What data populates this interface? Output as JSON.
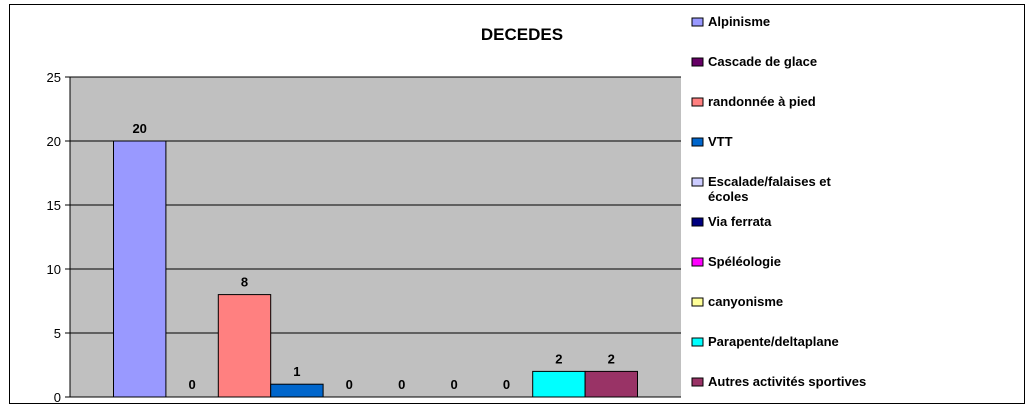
{
  "chart_data": {
    "type": "bar",
    "title": "DECEDES",
    "xlabel": "",
    "ylabel": "",
    "ylim": [
      0,
      25
    ],
    "yticks": [
      0,
      5,
      10,
      15,
      20,
      25
    ],
    "grid": true,
    "legend_position": "right",
    "plot_background": "#c0c0c0",
    "series": [
      {
        "name": "Alpinisme",
        "value": 20,
        "label": "20",
        "color": "#9999ff"
      },
      {
        "name": "Cascade de glace",
        "value": 0,
        "label": "0",
        "color": "#660066"
      },
      {
        "name": "randonnée à pied",
        "value": 8,
        "label": "8",
        "color": "#ff8080"
      },
      {
        "name": "VTT",
        "value": 1,
        "label": "1",
        "color": "#0066cc"
      },
      {
        "name": "Escalade/falaises et écoles",
        "value": 0,
        "label": "0",
        "color": "#ccccff"
      },
      {
        "name": "Via ferrata",
        "value": 0,
        "label": "0",
        "color": "#000080"
      },
      {
        "name": "Spéléologie",
        "value": 0,
        "label": "0",
        "color": "#ff00ff"
      },
      {
        "name": "canyonisme",
        "value": 0,
        "label": "0",
        "color": "#ffff99"
      },
      {
        "name": "Parapente/deltaplane",
        "value": 2,
        "label": "2",
        "color": "#00ffff"
      },
      {
        "name": "Autres activités sportives",
        "value": 2,
        "label": "2",
        "color": "#993366"
      }
    ]
  }
}
